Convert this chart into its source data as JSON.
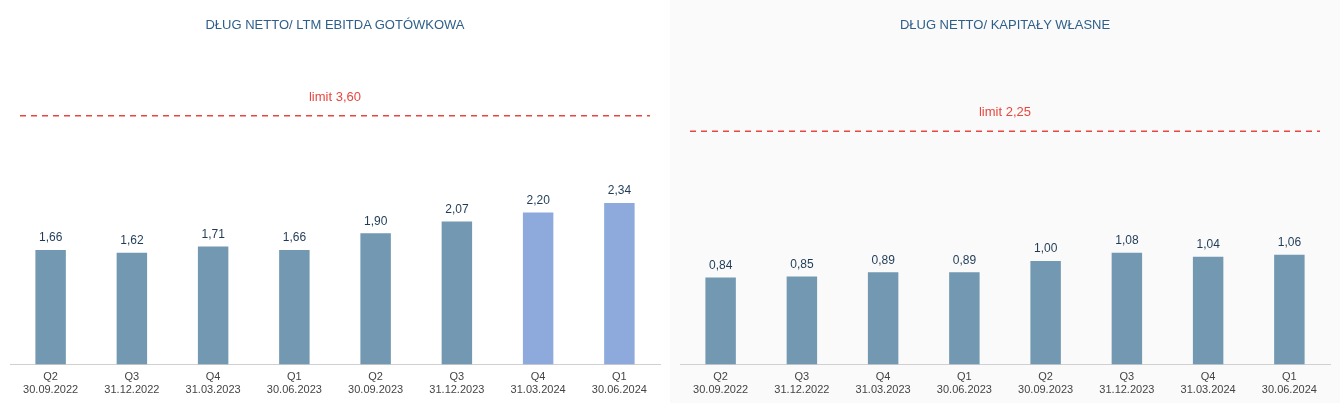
{
  "chart_data": [
    {
      "type": "bar",
      "title": "DŁUG NETTO/ LTM EBITDA GOTÓWKOWA",
      "categories": [
        "Q2\n30.09.2022",
        "Q3\n31.12.2022",
        "Q4\n31.03.2023",
        "Q1\n30.06.2023",
        "Q2\n30.09.2023",
        "Q3\n31.12.2023",
        "Q4\n31.03.2024",
        "Q1\n30.06.2024"
      ],
      "values": [
        1.66,
        1.62,
        1.71,
        1.66,
        1.9,
        2.07,
        2.2,
        2.34
      ],
      "colors": [
        "#7299b1",
        "#7299b1",
        "#7299b1",
        "#7299b1",
        "#7299b1",
        "#7299b1",
        "#8eaadc",
        "#8eaadc"
      ],
      "value_labels": [
        "1,66",
        "1,62",
        "1,71",
        "1,66",
        "1,90",
        "2,07",
        "2,20",
        "2,34"
      ],
      "grid": false,
      "legend": false,
      "tick_labels": "x",
      "ref_lines": [
        {
          "axis": "y",
          "value": 3.6,
          "label": "limit 3,60",
          "color": "#e8473f",
          "line_style": "dashed"
        }
      ]
    },
    {
      "type": "bar",
      "title": "DŁUG NETTO/ KAPITAŁY WŁASNE",
      "categories": [
        "Q2\n30.09.2022",
        "Q3\n31.12.2022",
        "Q4\n31.03.2023",
        "Q1\n30.06.2023",
        "Q2\n30.09.2023",
        "Q3\n31.12.2023",
        "Q4\n31.03.2024",
        "Q1\n30.06.2024"
      ],
      "values": [
        0.84,
        0.85,
        0.89,
        0.89,
        1.0,
        1.08,
        1.04,
        1.06
      ],
      "colors": [
        "#7299b1",
        "#7299b1",
        "#7299b1",
        "#7299b1",
        "#7299b1",
        "#7299b1",
        "#7299b1",
        "#7299b1"
      ],
      "value_labels": [
        "0,84",
        "0,85",
        "0,89",
        "0,89",
        "1,00",
        "1,08",
        "1,04",
        "1,06"
      ],
      "grid": false,
      "legend": false,
      "tick_labels": "x",
      "ref_lines": [
        {
          "axis": "y",
          "value": 2.25,
          "label": "limit 2,25",
          "color": "#e8473f",
          "line_style": "dashed"
        }
      ]
    }
  ]
}
